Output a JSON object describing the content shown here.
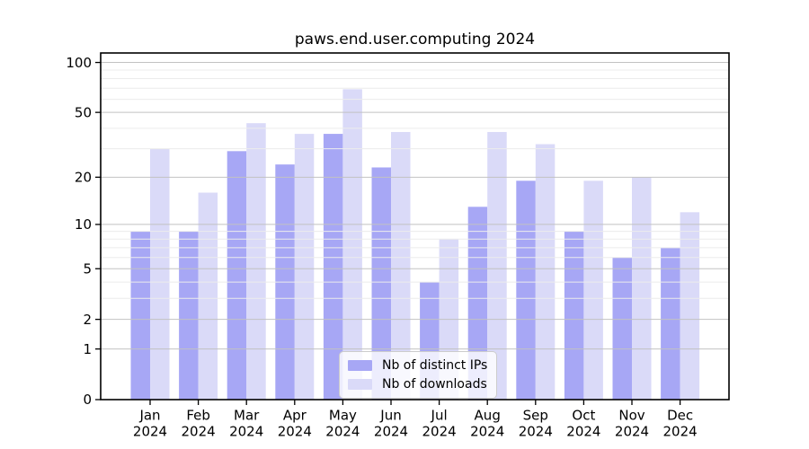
{
  "chart_data": {
    "type": "bar",
    "title": "paws.end.user.computing 2024",
    "yscale": "log1p",
    "grid": "on",
    "legend_position": "bottom-center",
    "categories": [
      "Jan",
      "Feb",
      "Mar",
      "Apr",
      "May",
      "Jun",
      "Jul",
      "Aug",
      "Sep",
      "Oct",
      "Nov",
      "Dec"
    ],
    "x_tick_sublabel": "2024",
    "series": [
      {
        "name": "Nb of distinct IPs",
        "color": "#a7a7f5",
        "values": [
          9,
          9,
          29,
          24,
          37,
          23,
          4,
          13,
          19,
          9,
          6,
          7
        ]
      },
      {
        "name": "Nb of downloads",
        "color": "#dadaf8",
        "values": [
          30,
          16,
          43,
          37,
          69,
          38,
          8,
          38,
          32,
          19,
          20,
          12
        ]
      }
    ],
    "y_major_ticks": [
      0,
      1,
      2,
      5,
      10,
      20,
      50,
      100
    ],
    "y_minor_ticks": [
      3,
      4,
      6,
      7,
      8,
      9,
      30,
      40,
      60,
      70,
      80,
      90
    ],
    "ylim": [
      0,
      114
    ],
    "xlabel": "",
    "ylabel": ""
  },
  "colors": {
    "background": "#ffffff",
    "axis": "#000000",
    "text": "#000000",
    "major_grid": "#c2c2c2",
    "minor_grid": "#ececec",
    "legend_background": "rgba(255,255,255,0.8)",
    "legend_border": "#cccccc"
  }
}
